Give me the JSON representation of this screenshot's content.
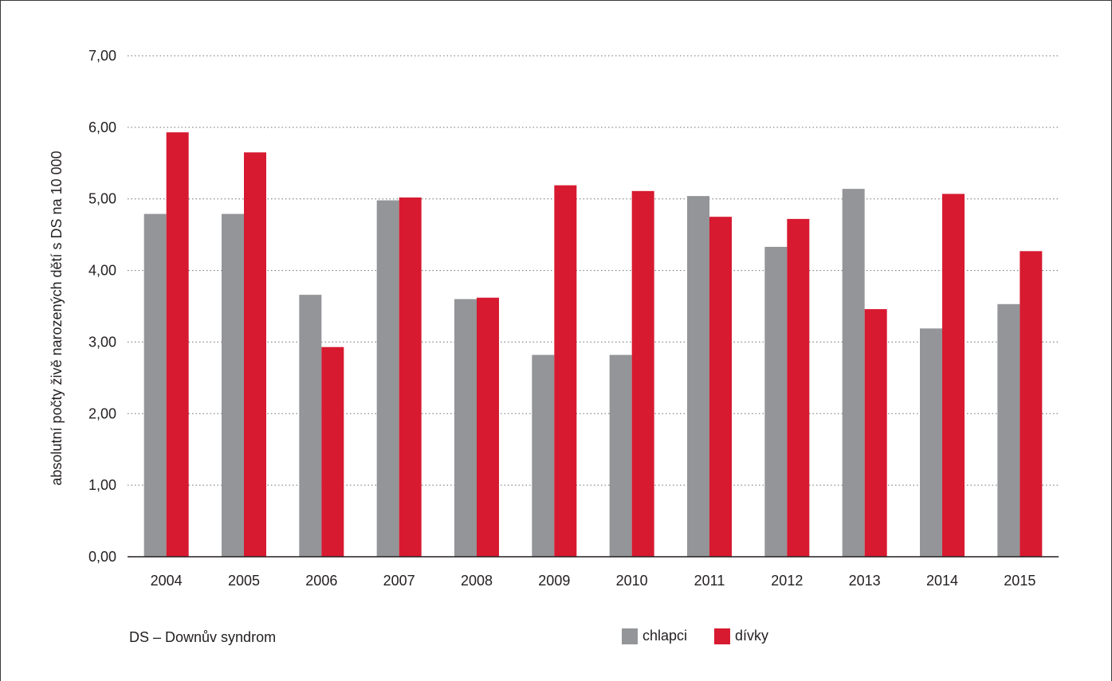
{
  "chart_data": {
    "type": "bar",
    "categories": [
      "2004",
      "2005",
      "2006",
      "2007",
      "2008",
      "2009",
      "2010",
      "2011",
      "2012",
      "2013",
      "2014",
      "2015"
    ],
    "series": [
      {
        "name": "chlapci",
        "color": "#939598",
        "values": [
          4.79,
          4.79,
          3.66,
          4.98,
          3.6,
          2.82,
          2.82,
          5.04,
          4.33,
          5.14,
          3.19,
          3.53
        ]
      },
      {
        "name": "dívky",
        "color": "#d71a30",
        "values": [
          5.93,
          5.65,
          2.93,
          5.02,
          3.62,
          5.19,
          5.11,
          4.75,
          4.72,
          3.46,
          5.07,
          4.27
        ]
      }
    ],
    "ylabel": "absolutní počty živě narozených dětí s DS na 10 000",
    "xlabel": "",
    "ylim": [
      0,
      7
    ],
    "yticks": [
      "0,00",
      "1,00",
      "2,00",
      "3,00",
      "4,00",
      "5,00",
      "6,00",
      "7,00"
    ],
    "grid": true,
    "legend_position": "bottom"
  },
  "footnote": "DS – Downův syndrom"
}
